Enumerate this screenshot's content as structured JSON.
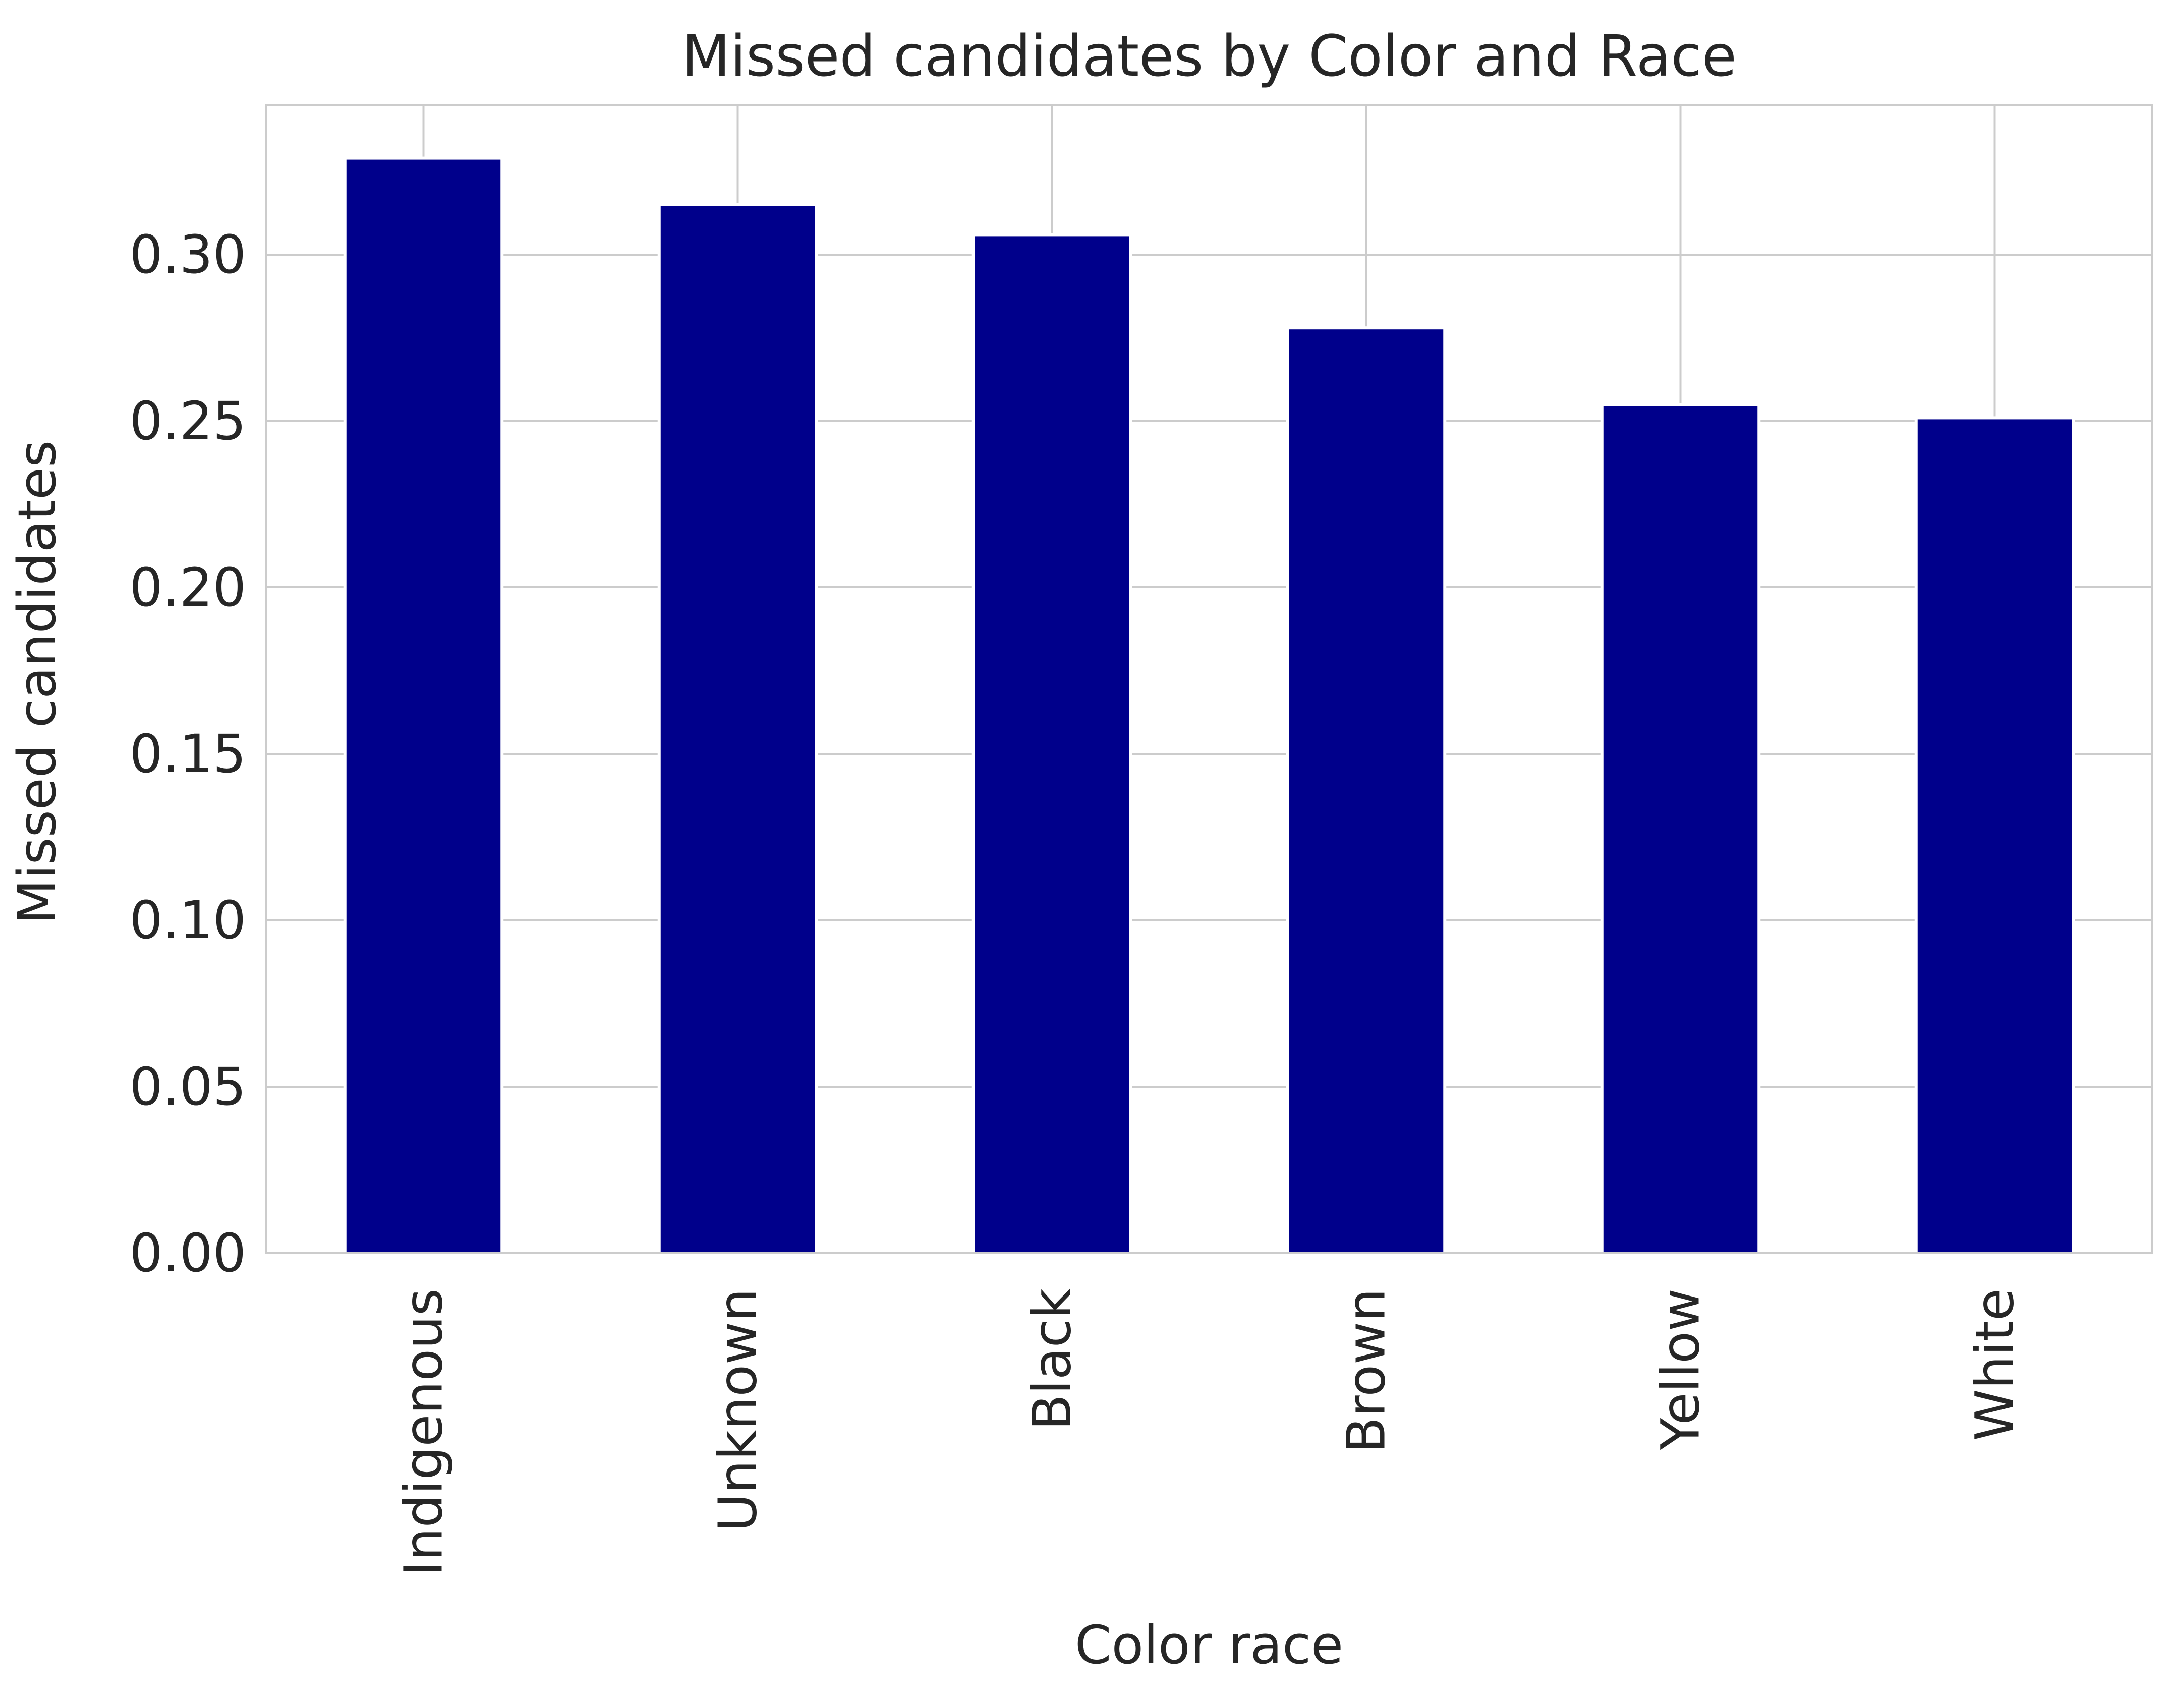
{
  "chart_data": {
    "type": "bar",
    "title": "Missed candidates by Color and Race",
    "xlabel": "Color race",
    "ylabel": "Missed candidates",
    "categories": [
      "Indigenous",
      "Unknown",
      "Black",
      "Brown",
      "Yellow",
      "White"
    ],
    "values": [
      0.329,
      0.315,
      0.306,
      0.278,
      0.255,
      0.251
    ],
    "ylim": [
      0,
      0.345
    ],
    "yticks": [
      0.0,
      0.05,
      0.1,
      0.15,
      0.2,
      0.25,
      0.3
    ],
    "ytick_labels": [
      "0.00",
      "0.05",
      "0.10",
      "0.15",
      "0.20",
      "0.25",
      "0.30"
    ],
    "grid": true,
    "bar_color": "#00008b",
    "grid_color": "#cccccc",
    "text_color": "#262626"
  }
}
